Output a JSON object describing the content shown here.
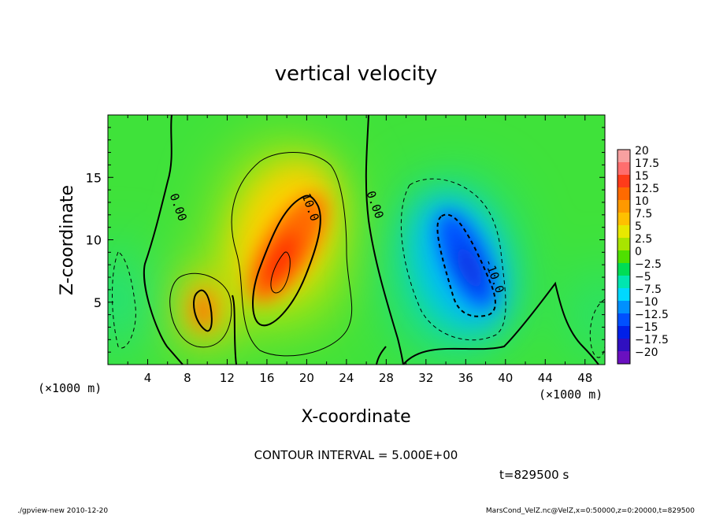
{
  "chart_data": {
    "type": "heatmap",
    "title": "vertical velocity",
    "xlabel": "X-coordinate",
    "ylabel": "Z-coordinate",
    "x_unit": "(×1000 m)",
    "y_unit": "(×1000 m)",
    "xlim": [
      0,
      50
    ],
    "ylim": [
      0,
      20
    ],
    "x_ticks": [
      4,
      8,
      12,
      16,
      20,
      24,
      28,
      32,
      36,
      40,
      44,
      48
    ],
    "y_ticks": [
      5,
      10,
      15
    ],
    "colorbar_levels": [
      "20",
      "17.5",
      "15",
      "12.5",
      "10",
      "7.5",
      "5",
      "2.5",
      "0",
      "−2.5",
      "−5",
      "−7.5",
      "−10",
      "−12.5",
      "−15",
      "−17.5",
      "−20"
    ],
    "colorbar_colors": [
      "#f7a0a0",
      "#ff6e6e",
      "#ff3b1a",
      "#ff6a00",
      "#ff9900",
      "#ffc000",
      "#e8e800",
      "#a8e400",
      "#4fe000",
      "#00dd55",
      "#00e6b0",
      "#00d8ff",
      "#0090ff",
      "#0050ff",
      "#0020e8",
      "#3010c0",
      "#6a10c0"
    ],
    "contour_interval": "CONTOUR INTERVAL = 5.000E+00",
    "contour_labels": [
      {
        "text": "0.00",
        "x": 6.7,
        "y": 12.5
      },
      {
        "text": "10.0",
        "x": 20.0,
        "y": 12.5
      },
      {
        "text": "0.00",
        "x": 26.5,
        "y": 12.7
      },
      {
        "text": "-10.0",
        "x": 38.5,
        "y": 7.0
      }
    ],
    "features": [
      {
        "kind": "max",
        "x": 18.5,
        "y": 9.5,
        "value": 15
      },
      {
        "kind": "max",
        "x": 9.5,
        "y": 4.5,
        "value": 12.5
      },
      {
        "kind": "min",
        "x": 36.5,
        "y": 8.0,
        "value": -12.5
      }
    ],
    "time_label": "t=829500 s"
  },
  "footer": {
    "left": "./gpview-new  2010-12-20",
    "right": "MarsCond_VelZ.nc@VelZ,x=0:50000,z=0:20000,t=829500"
  }
}
